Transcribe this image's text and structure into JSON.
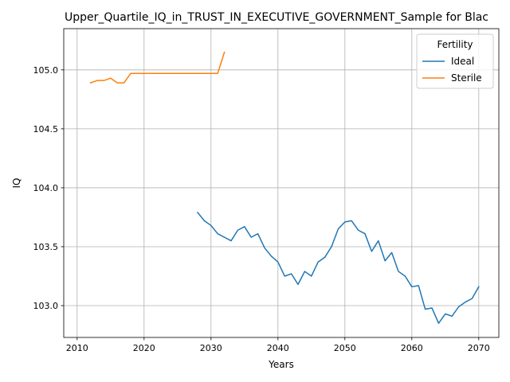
{
  "chart_data": {
    "type": "line",
    "title": "Upper_Quartile_IQ_in_TRUST_IN_EXECUTIVE_GOVERNMENT_Sample for Blac",
    "xlabel": "Years",
    "ylabel": "IQ",
    "xlim": [
      2008,
      2073
    ],
    "ylim": [
      102.73,
      105.35
    ],
    "xticks": [
      2010,
      2020,
      2030,
      2040,
      2050,
      2060,
      2070
    ],
    "yticks": [
      103.0,
      103.5,
      104.0,
      104.5,
      105.0
    ],
    "xtick_labels": [
      "2010",
      "2020",
      "2030",
      "2040",
      "2050",
      "2060",
      "2070"
    ],
    "ytick_labels": [
      "103.0",
      "103.5",
      "104.0",
      "104.5",
      "105.0"
    ],
    "grid": true,
    "legend": {
      "title": "Fertility",
      "position": "top-right"
    },
    "series": [
      {
        "name": "Ideal",
        "color": "#1f77b4",
        "x": [
          2028,
          2029,
          2030,
          2031,
          2032,
          2033,
          2034,
          2035,
          2036,
          2037,
          2038,
          2039,
          2040,
          2041,
          2042,
          2043,
          2044,
          2045,
          2046,
          2047,
          2048,
          2049,
          2050,
          2051,
          2052,
          2053,
          2054,
          2055,
          2056,
          2057,
          2058,
          2059,
          2060,
          2061,
          2062,
          2063,
          2064,
          2065,
          2066,
          2067,
          2068,
          2069,
          2070
        ],
        "values": [
          103.79,
          103.72,
          103.68,
          103.61,
          103.58,
          103.55,
          103.64,
          103.67,
          103.58,
          103.61,
          103.49,
          103.42,
          103.37,
          103.25,
          103.27,
          103.18,
          103.29,
          103.25,
          103.37,
          103.41,
          103.5,
          103.65,
          103.71,
          103.72,
          103.64,
          103.61,
          103.46,
          103.55,
          103.38,
          103.45,
          103.29,
          103.25,
          103.16,
          103.17,
          102.97,
          102.98,
          102.85,
          102.93,
          102.91,
          102.99,
          103.03,
          103.06,
          103.16
        ]
      },
      {
        "name": "Sterile",
        "color": "#ff7f0e",
        "x": [
          2012,
          2013,
          2014,
          2015,
          2016,
          2017,
          2018,
          2019,
          2020,
          2021,
          2022,
          2023,
          2024,
          2025,
          2026,
          2027,
          2028,
          2029,
          2030,
          2031,
          2032
        ],
        "values": [
          104.89,
          104.91,
          104.91,
          104.93,
          104.89,
          104.89,
          104.97,
          104.97,
          104.97,
          104.97,
          104.97,
          104.97,
          104.97,
          104.97,
          104.97,
          104.97,
          104.97,
          104.97,
          104.97,
          104.97,
          105.15
        ]
      }
    ]
  }
}
